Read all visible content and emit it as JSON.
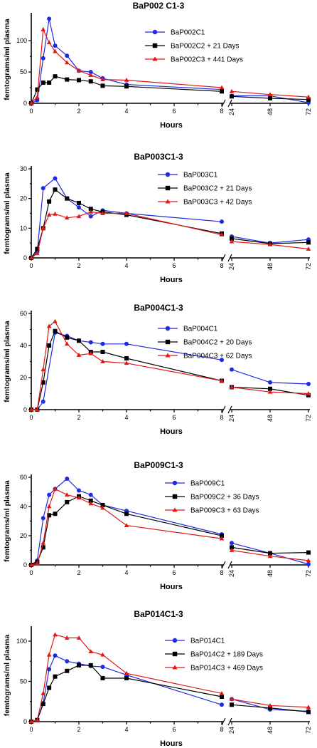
{
  "chart_data": [
    {
      "type": "line",
      "title": "BaP002 C1-3",
      "xlabel": "Hours",
      "ylabel": "femtograms/ml plasma",
      "ylim": [
        0,
        140
      ],
      "yticks": [
        0,
        50,
        100
      ],
      "x_segments": [
        {
          "range": [
            0,
            8
          ],
          "ticks": [
            0,
            2,
            4,
            6,
            8
          ]
        },
        {
          "range": [
            24,
            72
          ],
          "ticks": [
            24,
            48,
            72
          ]
        }
      ],
      "series": [
        {
          "name": "BaP002C1",
          "color": "#1f2be0",
          "marker": "circle",
          "x": [
            0,
            0.25,
            0.5,
            0.75,
            1,
            1.5,
            2,
            2.5,
            3,
            4,
            8,
            24,
            48,
            72
          ],
          "y": [
            0,
            5,
            72,
            135,
            92,
            76,
            52,
            50,
            40,
            30,
            22,
            12,
            12,
            1
          ]
        },
        {
          "name": "BaP002C2 + 21 Days",
          "color": "#000000",
          "marker": "square",
          "x": [
            0,
            0.25,
            0.5,
            0.75,
            1,
            1.5,
            2,
            2.5,
            3,
            4,
            8,
            24,
            48,
            72
          ],
          "y": [
            0,
            22,
            33,
            33,
            43,
            38,
            37,
            35,
            28,
            27,
            19,
            11,
            8,
            6
          ]
        },
        {
          "name": "BaP002C3 + 441 Days",
          "color": "#e01818",
          "marker": "triangle",
          "x": [
            0,
            0.25,
            0.5,
            0.75,
            1,
            1.5,
            2,
            2.5,
            3,
            4,
            8,
            24,
            48,
            72
          ],
          "y": [
            0,
            10,
            118,
            97,
            83,
            65,
            52,
            45,
            38,
            37,
            25,
            19,
            14,
            10
          ]
        }
      ]
    },
    {
      "type": "line",
      "title": "BaP003C1-3",
      "xlabel": "Hours",
      "ylabel": "femtograms/ml plasma",
      "ylim": [
        0,
        30
      ],
      "yticks": [
        0,
        10,
        20,
        30
      ],
      "x_segments": [
        {
          "range": [
            0,
            8
          ],
          "ticks": [
            0,
            2,
            4,
            6,
            8
          ]
        },
        {
          "range": [
            24,
            72
          ],
          "ticks": [
            24,
            48,
            72
          ]
        }
      ],
      "series": [
        {
          "name": "BaP003C1",
          "color": "#1f2be0",
          "marker": "circle",
          "x": [
            0,
            0.25,
            0.5,
            1,
            1.5,
            2,
            2.5,
            3,
            4,
            8,
            24,
            48,
            72
          ],
          "y": [
            0,
            2,
            23.5,
            26.8,
            20,
            17,
            14,
            16,
            15,
            12.2,
            7.2,
            5,
            6.2
          ]
        },
        {
          "name": "BaP003C2 + 21 Days",
          "color": "#000000",
          "marker": "square",
          "x": [
            0,
            0.25,
            0.5,
            0.75,
            1,
            1.5,
            2,
            2.5,
            3,
            4,
            8,
            24,
            48,
            72
          ],
          "y": [
            0,
            3,
            10,
            19,
            23,
            20,
            18.5,
            16.5,
            15.5,
            14.5,
            8.2,
            6.5,
            4.8,
            5.2
          ]
        },
        {
          "name": "BaP003C3 + 42 Days",
          "color": "#e01818",
          "marker": "triangle",
          "x": [
            0,
            0.25,
            0.5,
            0.75,
            1,
            1.5,
            2,
            2.5,
            3,
            4,
            8,
            24,
            48,
            72
          ],
          "y": [
            0,
            1.5,
            10,
            14.5,
            14.8,
            13.5,
            14,
            15.5,
            15,
            15,
            7.8,
            5.5,
            4.5,
            3
          ]
        }
      ]
    },
    {
      "type": "line",
      "title": "BaP004C1-3",
      "xlabel": "Hours",
      "ylabel": "femtograms/ml plasma",
      "ylim": [
        0,
        60
      ],
      "yticks": [
        0,
        20,
        40,
        60
      ],
      "x_segments": [
        {
          "range": [
            0,
            8
          ],
          "ticks": [
            0,
            2,
            4,
            6,
            8
          ]
        },
        {
          "range": [
            24,
            72
          ],
          "ticks": [
            24,
            48,
            72
          ]
        }
      ],
      "series": [
        {
          "name": "BaP004C1",
          "color": "#1f2be0",
          "marker": "circle",
          "x": [
            0,
            0.25,
            0.5,
            1,
            1.5,
            2,
            2.5,
            3,
            4,
            8,
            24,
            48,
            72
          ],
          "y": [
            0,
            0,
            5,
            48,
            46,
            43,
            42,
            41,
            41,
            31,
            25,
            17,
            16
          ]
        },
        {
          "name": "BaP004C2 + 20 Days",
          "color": "#000000",
          "marker": "square",
          "x": [
            0,
            0.25,
            0.5,
            0.75,
            1,
            1.5,
            2,
            2.5,
            3,
            4,
            8,
            24,
            48,
            72
          ],
          "y": [
            0,
            0,
            17,
            40,
            49,
            45,
            43,
            36,
            36,
            32,
            18,
            14,
            13,
            9
          ]
        },
        {
          "name": "BaP004C3 + 62 Days",
          "color": "#e01818",
          "marker": "triangle",
          "x": [
            0,
            0.25,
            0.5,
            0.75,
            1,
            1.5,
            2,
            2.5,
            3,
            4,
            8,
            24,
            48,
            72
          ],
          "y": [
            0,
            0,
            25,
            52,
            55,
            41,
            34,
            35,
            30,
            29,
            18,
            14,
            11,
            10
          ]
        }
      ]
    },
    {
      "type": "line",
      "title": "BaP009C1-3",
      "xlabel": "Hours",
      "ylabel": "femtograms/ml plasma",
      "ylim": [
        0,
        60
      ],
      "yticks": [
        0,
        20,
        40,
        60
      ],
      "x_segments": [
        {
          "range": [
            0,
            8
          ],
          "ticks": [
            0,
            2,
            4,
            6,
            8
          ]
        },
        {
          "range": [
            24,
            72
          ],
          "ticks": [
            24,
            48,
            72
          ]
        }
      ],
      "series": [
        {
          "name": "BaP009C1",
          "color": "#1f2be0",
          "marker": "circle",
          "x": [
            0,
            0.25,
            0.5,
            0.75,
            1,
            1.5,
            2,
            2.5,
            3,
            4,
            8,
            24,
            48,
            72
          ],
          "y": [
            0,
            3,
            32,
            48,
            52,
            59,
            51,
            48,
            41,
            37,
            21,
            15,
            8,
            0.5
          ]
        },
        {
          "name": "BaP009C2 + 36 Days",
          "color": "#000000",
          "marker": "square",
          "x": [
            0,
            0.25,
            0.5,
            0.75,
            1,
            1.5,
            2,
            2.5,
            3,
            4,
            8,
            24,
            48,
            72
          ],
          "y": [
            0,
            2,
            12,
            34,
            35,
            43,
            47,
            44,
            41,
            35,
            20,
            12,
            8,
            8.5
          ]
        },
        {
          "name": "BaP009C3 + 63 Days",
          "color": "#e01818",
          "marker": "triangle",
          "x": [
            0,
            0.25,
            0.5,
            0.75,
            1,
            1.5,
            2,
            2.5,
            3,
            4,
            8,
            24,
            48,
            72
          ],
          "y": [
            0,
            1,
            15,
            40,
            52,
            48,
            46,
            42,
            39,
            27,
            18,
            10,
            6,
            3
          ]
        }
      ]
    },
    {
      "type": "line",
      "title": "BaP014C1-3",
      "xlabel": "Hours",
      "ylabel": "femtograms/ml plasma",
      "ylim": [
        0,
        115
      ],
      "yticks": [
        0,
        50,
        100
      ],
      "x_segments": [
        {
          "range": [
            0,
            8
          ],
          "ticks": [
            0,
            2,
            4,
            6,
            8
          ]
        },
        {
          "range": [
            24,
            72
          ],
          "ticks": [
            24,
            48,
            72
          ]
        }
      ],
      "series": [
        {
          "name": "BaP014C1",
          "color": "#1f2be0",
          "marker": "circle",
          "x": [
            0,
            0.25,
            0.5,
            0.75,
            1,
            1.5,
            2,
            2.5,
            3,
            4,
            8,
            24,
            48,
            72
          ],
          "y": [
            0,
            2,
            23,
            65,
            82,
            75,
            72,
            69,
            68,
            58,
            21,
            28,
            15,
            13
          ]
        },
        {
          "name": "BaP014C2 + 189 Days",
          "color": "#000000",
          "marker": "square",
          "x": [
            0,
            0.25,
            0.5,
            0.75,
            1,
            1.5,
            2,
            2.5,
            3,
            4,
            8,
            24,
            48,
            72
          ],
          "y": [
            0,
            2,
            22,
            42,
            56,
            63,
            70,
            70,
            54,
            54,
            31,
            21,
            17,
            12
          ]
        },
        {
          "name": "BaP014C3 + 469 Days",
          "color": "#e01818",
          "marker": "triangle",
          "x": [
            0,
            0.25,
            0.5,
            0.75,
            1,
            1.5,
            2,
            2.5,
            3,
            4,
            8,
            24,
            48,
            72
          ],
          "y": [
            0,
            2,
            35,
            83,
            108,
            104,
            104,
            87,
            83,
            60,
            35,
            28,
            20,
            18
          ]
        }
      ]
    }
  ]
}
